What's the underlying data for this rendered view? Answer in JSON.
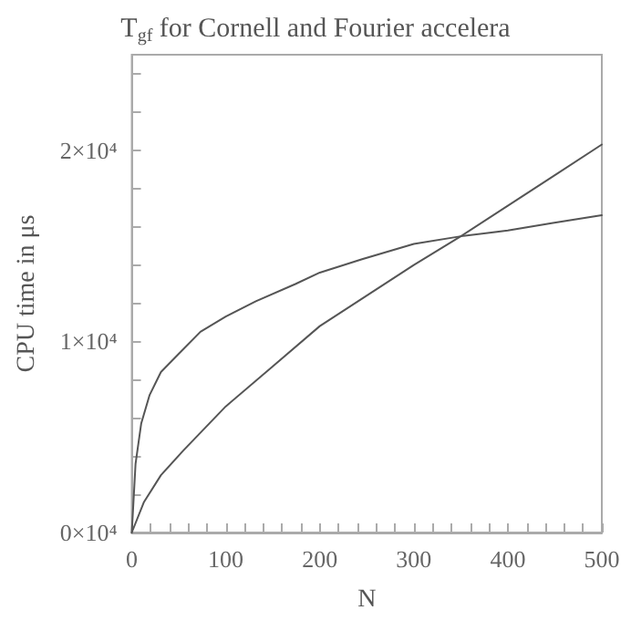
{
  "chart_data": {
    "type": "line",
    "title": "T$_{gf}$ for Cornell and Fourier accelera",
    "xlabel": "N",
    "ylabel": "CPU time in μs",
    "xlim": [
      0,
      500
    ],
    "ylim": [
      0,
      25000
    ],
    "xticks": [
      0,
      {
        "value": 20,
        "label": null
      },
      {
        "value": 40,
        "label": null
      },
      {
        "value": 60,
        "label": null
      },
      {
        "value": 80,
        "label": null
      },
      100,
      {
        "value": 120,
        "label": null
      },
      {
        "value": 140,
        "label": null
      },
      {
        "value": 160,
        "label": null
      },
      {
        "value": 180,
        "label": null
      },
      200,
      {
        "value": 220,
        "label": null
      },
      {
        "value": 240,
        "label": null
      },
      {
        "value": 260,
        "label": null
      },
      {
        "value": 280,
        "label": null
      },
      300,
      {
        "value": 320,
        "label": null
      },
      {
        "value": 340,
        "label": null
      },
      {
        "value": 360,
        "label": null
      },
      {
        "value": 380,
        "label": null
      },
      400,
      {
        "value": 420,
        "label": null
      },
      {
        "value": 440,
        "label": null
      },
      {
        "value": 460,
        "label": null
      },
      {
        "value": 480,
        "label": null
      },
      500
    ],
    "yticks": [
      {
        "value": 0,
        "label": "0×10⁴"
      },
      {
        "value": 2000,
        "label": null
      },
      {
        "value": 4000,
        "label": null
      },
      {
        "value": 6000,
        "label": null
      },
      {
        "value": 8000,
        "label": null
      },
      {
        "value": 10000,
        "label": "1×10⁴"
      },
      {
        "value": 12000,
        "label": null
      },
      {
        "value": 14000,
        "label": null
      },
      {
        "value": 16000,
        "label": null
      },
      {
        "value": 18000,
        "label": null
      },
      {
        "value": 20000,
        "label": "2×10⁴"
      },
      {
        "value": 22000,
        "label": null
      },
      {
        "value": 24000,
        "label": null
      }
    ],
    "grid": false,
    "marker": "none",
    "line_style": "solid",
    "series": [
      {
        "color": "#555555",
        "x": [
          0,
          4,
          10,
          19,
          31,
          49,
          73,
          100,
          132,
          174,
          200,
          245,
          300,
          350,
          400,
          448,
          500
        ],
        "values": [
          0,
          3600,
          5700,
          7200,
          8400,
          9300,
          10500,
          11300,
          12100,
          13000,
          13600,
          14300,
          15100,
          15500,
          15800,
          16200,
          16600
        ]
      },
      {
        "color": "#555555",
        "x": [
          0,
          13,
          31,
          55,
          100,
          150,
          200,
          250,
          300,
          350,
          400,
          450,
          500
        ],
        "values": [
          0,
          1600,
          3000,
          4300,
          6600,
          8700,
          10800,
          12400,
          14000,
          15500,
          17100,
          18700,
          20300
        ]
      }
    ]
  }
}
